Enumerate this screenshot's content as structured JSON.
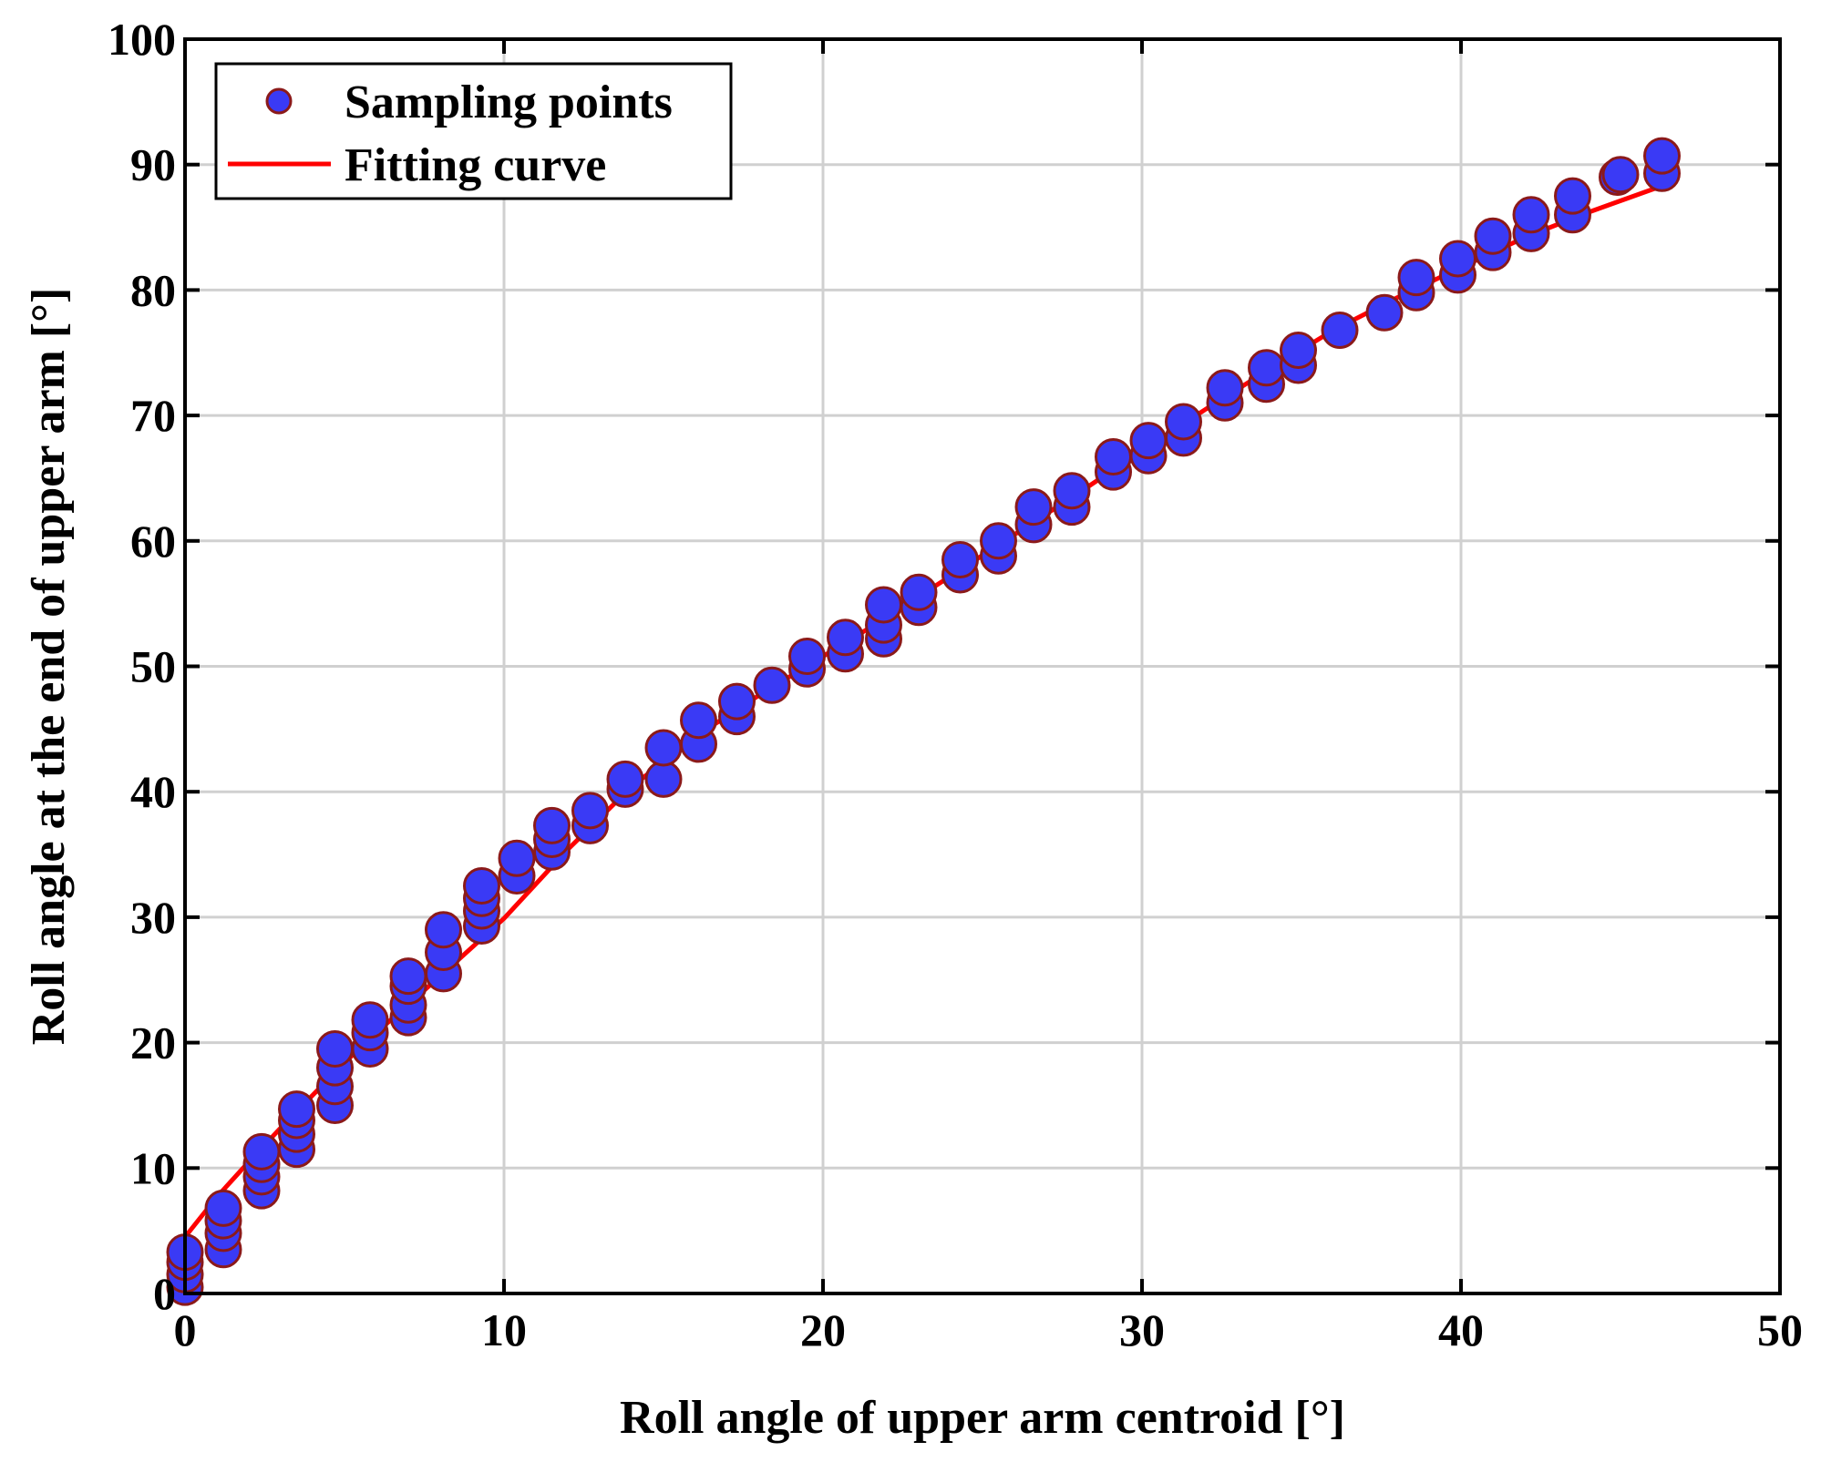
{
  "chart_data": {
    "type": "scatter",
    "title": "",
    "xlabel": "Roll angle of upper arm centroid [°]",
    "ylabel": "Roll angle at the end of upper arm [°]",
    "xlim": [
      0,
      50
    ],
    "ylim": [
      0,
      100
    ],
    "xticks": [
      0,
      10,
      20,
      30,
      40,
      50
    ],
    "yticks": [
      0,
      10,
      20,
      30,
      40,
      50,
      60,
      70,
      80,
      90,
      100
    ],
    "grid": true,
    "legend_position": "top-left",
    "colors": {
      "marker_fill": "#3a3af5",
      "marker_edge": "#8b1a1a",
      "curve": "#ff0000",
      "grid": "#d0d0d0",
      "axis": "#000000"
    },
    "series": [
      {
        "name": "Sampling points",
        "kind": "markers",
        "x": [
          0,
          0,
          0,
          0,
          1.2,
          1.2,
          1.2,
          1.2,
          2.4,
          2.4,
          2.4,
          2.4,
          3.5,
          3.5,
          3.5,
          3.5,
          4.7,
          4.7,
          4.7,
          4.7,
          5.8,
          5.8,
          5.8,
          7.0,
          7.0,
          7.0,
          7.0,
          8.1,
          8.1,
          8.1,
          9.3,
          9.3,
          9.3,
          9.3,
          10.4,
          10.4,
          11.5,
          11.5,
          11.5,
          12.7,
          12.7,
          13.8,
          13.8,
          15.0,
          15.0,
          16.1,
          16.1,
          17.3,
          17.3,
          18.4,
          19.5,
          19.5,
          20.7,
          20.7,
          21.9,
          21.9,
          21.9,
          23.0,
          23.0,
          24.3,
          24.3,
          25.5,
          25.5,
          26.6,
          26.6,
          27.8,
          27.8,
          29.1,
          29.1,
          30.2,
          30.2,
          31.3,
          31.3,
          32.6,
          32.6,
          33.9,
          33.9,
          34.9,
          34.9,
          36.2,
          37.6,
          38.6,
          38.6,
          39.9,
          39.9,
          41.0,
          41.0,
          42.2,
          42.2,
          43.5,
          43.5,
          44.9,
          45.0,
          46.3,
          46.3
        ],
        "y": [
          0.5,
          1.5,
          2.5,
          3.3,
          3.5,
          4.8,
          5.8,
          6.8,
          8.2,
          9.3,
          10.3,
          11.3,
          11.5,
          12.7,
          13.8,
          14.7,
          15.0,
          16.5,
          18.0,
          19.5,
          19.5,
          20.8,
          21.8,
          22.0,
          23.0,
          24.5,
          25.3,
          25.5,
          27.2,
          29.0,
          29.3,
          30.5,
          31.5,
          32.5,
          33.3,
          34.7,
          35.2,
          36.2,
          37.3,
          37.3,
          38.5,
          40.2,
          41.0,
          41.0,
          43.5,
          43.8,
          45.7,
          46.0,
          47.2,
          48.5,
          49.8,
          50.8,
          51.0,
          52.3,
          52.2,
          53.3,
          54.9,
          54.7,
          55.9,
          57.3,
          58.5,
          58.8,
          60.0,
          61.3,
          62.7,
          62.7,
          64.0,
          65.5,
          66.7,
          66.8,
          68.0,
          68.2,
          69.5,
          71.0,
          72.2,
          72.5,
          73.8,
          74.0,
          75.2,
          76.8,
          78.2,
          79.8,
          81.0,
          81.2,
          82.5,
          83.0,
          84.3,
          84.5,
          86.0,
          86.0,
          87.5,
          89.0,
          89.2,
          89.3,
          90.7
        ]
      },
      {
        "name": "Fitting curve",
        "kind": "line",
        "x": [
          0,
          1,
          2,
          3,
          4,
          5,
          6,
          8,
          10,
          12,
          14,
          16,
          18,
          20,
          22,
          24,
          26,
          28,
          30,
          32,
          34,
          36,
          38,
          40,
          42,
          44,
          46.3
        ],
        "y": [
          4.5,
          7.7,
          10.5,
          13.2,
          15.8,
          18.4,
          20.8,
          25.3,
          29.9,
          35.4,
          40.4,
          44.4,
          47.7,
          50.8,
          53.9,
          57.2,
          60.5,
          63.8,
          67.2,
          70.5,
          73.7,
          76.8,
          79.4,
          81.8,
          84.2,
          86.2,
          88.3
        ]
      }
    ]
  }
}
